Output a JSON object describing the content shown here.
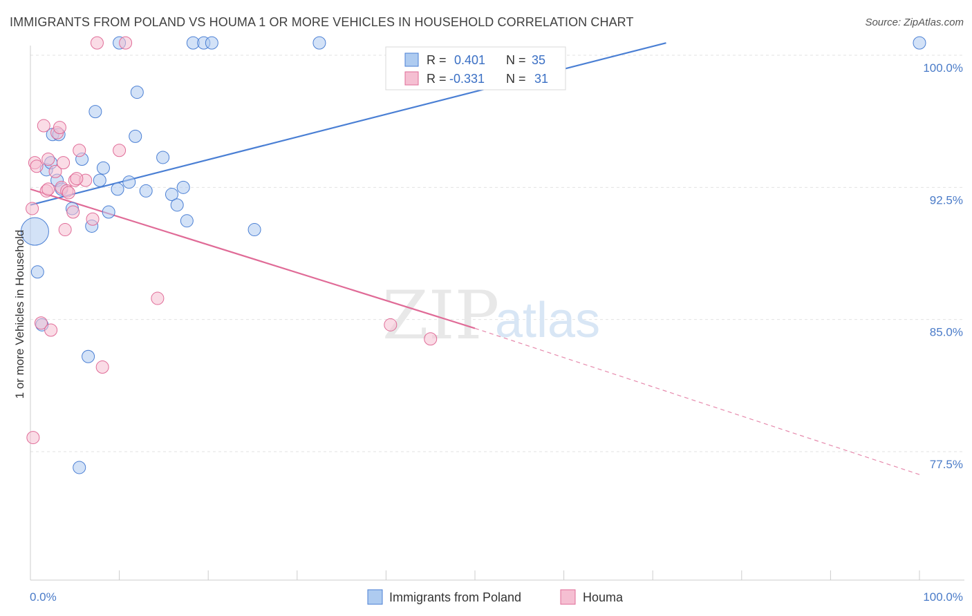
{
  "title": "IMMIGRANTS FROM POLAND VS HOUMA 1 OR MORE VEHICLES IN HOUSEHOLD CORRELATION CHART",
  "source": "Source: ZipAtlas.com",
  "watermark": {
    "zip": "ZIP",
    "atlas": "atlas"
  },
  "colors": {
    "blue": "#4a7fd4",
    "blue_fill": "#aecbf0",
    "pink": "#e06b97",
    "pink_fill": "#f5bfd2",
    "grid": "#e2e2e2",
    "tick_text": "#4a7bc8"
  },
  "legend": {
    "rows": [
      {
        "r_label": "R =",
        "r_value": "0.401",
        "n_label": "N =",
        "n_value": "35"
      },
      {
        "r_label": "R =",
        "r_value": "-0.331",
        "n_label": "N =",
        "n_value": "31"
      }
    ]
  },
  "chart_data": {
    "type": "scatter",
    "title": "IMMIGRANTS FROM POLAND VS HOUMA 1 OR MORE VEHICLES IN HOUSEHOLD CORRELATION CHART",
    "xlabel": "",
    "ylabel": "1 or more Vehicles in Household",
    "xlim": [
      0,
      100
    ],
    "ylim": [
      70,
      101
    ],
    "x_tick_labels": [
      "0.0%",
      "100.0%"
    ],
    "y_ticks": [
      77.5,
      85.0,
      92.5,
      100.0
    ],
    "y_tick_labels": [
      "77.5%",
      "85.0%",
      "92.5%",
      "100.0%"
    ],
    "grid": true,
    "series": [
      {
        "name": "Immigrants from Poland",
        "color": "#4a7fd4",
        "points": [
          [
            0.5,
            90.0,
            3
          ],
          [
            0.8,
            87.7,
            1
          ],
          [
            1.3,
            84.7,
            1
          ],
          [
            1.8,
            93.5,
            1
          ],
          [
            2.3,
            93.9,
            1
          ],
          [
            2.5,
            95.5,
            1
          ],
          [
            3.0,
            92.9,
            1
          ],
          [
            3.2,
            95.5,
            1
          ],
          [
            3.5,
            92.4,
            1
          ],
          [
            4.7,
            91.3,
            1
          ],
          [
            5.8,
            94.1,
            1
          ],
          [
            6.5,
            82.9,
            1
          ],
          [
            6.9,
            90.3,
            1
          ],
          [
            7.3,
            96.8,
            1
          ],
          [
            7.8,
            92.9,
            1
          ],
          [
            8.2,
            93.6,
            1
          ],
          [
            8.8,
            91.1,
            1
          ],
          [
            9.8,
            92.4,
            1
          ],
          [
            10.0,
            100.7,
            1
          ],
          [
            11.1,
            92.8,
            1
          ],
          [
            11.8,
            95.4,
            1
          ],
          [
            12.0,
            97.9,
            1
          ],
          [
            13.0,
            92.3,
            1
          ],
          [
            14.9,
            94.2,
            1
          ],
          [
            15.9,
            92.1,
            1
          ],
          [
            16.5,
            91.5,
            1
          ],
          [
            17.2,
            92.5,
            1
          ],
          [
            17.6,
            90.6,
            1
          ],
          [
            18.3,
            100.7,
            1
          ],
          [
            19.5,
            100.7,
            1
          ],
          [
            20.4,
            100.7,
            1
          ],
          [
            25.2,
            90.1,
            1
          ],
          [
            32.5,
            100.7,
            1
          ],
          [
            100.0,
            100.7,
            1
          ],
          [
            5.5,
            76.6,
            1
          ]
        ],
        "trend": {
          "x1": 0,
          "y1": 91.5,
          "x2": 71.5,
          "y2": 100.7,
          "dashed_to": null
        }
      },
      {
        "name": "Houma",
        "color": "#e06b97",
        "points": [
          [
            0.2,
            91.3,
            1
          ],
          [
            0.3,
            78.3,
            1
          ],
          [
            0.5,
            93.9,
            1
          ],
          [
            0.7,
            93.7,
            1
          ],
          [
            1.2,
            84.8,
            1
          ],
          [
            1.5,
            96.0,
            1
          ],
          [
            1.8,
            92.3,
            1
          ],
          [
            2.0,
            94.1,
            1
          ],
          [
            2.3,
            84.4,
            1
          ],
          [
            2.8,
            93.4,
            1
          ],
          [
            3.0,
            95.6,
            1
          ],
          [
            3.3,
            95.9,
            1
          ],
          [
            3.5,
            92.5,
            1
          ],
          [
            3.7,
            93.9,
            1
          ],
          [
            3.9,
            90.1,
            1
          ],
          [
            4.1,
            92.3,
            1
          ],
          [
            4.3,
            92.2,
            1
          ],
          [
            4.8,
            91.1,
            1
          ],
          [
            5.0,
            92.9,
            1
          ],
          [
            5.5,
            94.6,
            1
          ],
          [
            6.2,
            92.9,
            1
          ],
          [
            7.0,
            90.7,
            1
          ],
          [
            7.5,
            100.7,
            1
          ],
          [
            8.1,
            82.3,
            1
          ],
          [
            10.0,
            94.6,
            1
          ],
          [
            10.7,
            100.7,
            1
          ],
          [
            14.3,
            86.2,
            1
          ],
          [
            40.5,
            84.7,
            1
          ],
          [
            45.0,
            83.9,
            1
          ],
          [
            2.0,
            92.4,
            1
          ],
          [
            5.2,
            93.0,
            1
          ]
        ],
        "trend": {
          "x1": 0,
          "y1": 92.4,
          "x2": 50.0,
          "y2": 84.5,
          "dashed_to": {
            "x": 100,
            "y": 76.2
          }
        }
      }
    ]
  }
}
